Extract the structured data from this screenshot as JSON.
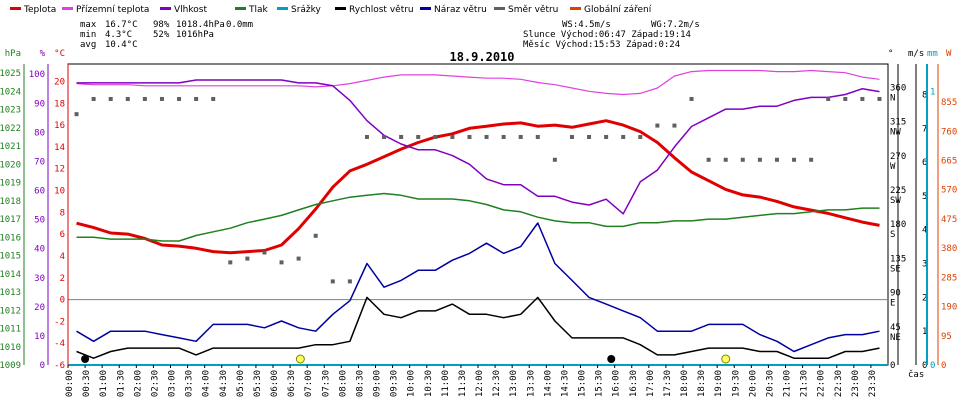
{
  "legend": [
    {
      "label": "Teplota",
      "color": "#e00000"
    },
    {
      "label": "Přízemní teplota",
      "color": "#e040e0"
    },
    {
      "label": "Vlhkost",
      "color": "#8000c0"
    },
    {
      "label": "Tlak",
      "color": "#208020"
    },
    {
      "label": "Srážky",
      "color": "#00a0c0"
    },
    {
      "label": "Rychlost větru",
      "color": "#000000"
    },
    {
      "label": "Náraz větru",
      "color": "#0000a0"
    },
    {
      "label": "Směr větru",
      "color": "#606060"
    },
    {
      "label": "Globální záření",
      "color": "#e04000"
    }
  ],
  "stats": {
    "max_label": "max",
    "max_temp": "16.7°C",
    "max_hum": "98%",
    "max_press": "1018.4hPa",
    "max_rain": "0.0mm",
    "min_label": "min",
    "min_temp": "4.3°C",
    "min_hum": "52%",
    "min_press": "1016hPa",
    "avg_label": "avg",
    "avg_temp": "10.4°C",
    "ws": "WS:4.5m/s",
    "wg": "WG:7.2m/s",
    "sun": "Slunce Východ:06:47   Západ:19:14",
    "moon": "Měsíc  Východ:15:53   Západ:0:24"
  },
  "chart_data": {
    "type": "line",
    "title": "18.9.2010",
    "xlabel": "čas",
    "x": [
      "00:00",
      "00:30",
      "01:00",
      "01:30",
      "02:00",
      "02:30",
      "03:00",
      "03:30",
      "04:00",
      "04:30",
      "05:00",
      "05:30",
      "06:00",
      "06:30",
      "07:00",
      "07:30",
      "08:00",
      "08:30",
      "09:00",
      "09:30",
      "10:00",
      "10:30",
      "11:00",
      "11:30",
      "12:00",
      "12:30",
      "13:00",
      "13:30",
      "14:00",
      "14:30",
      "15:00",
      "15:30",
      "16:00",
      "16:30",
      "17:00",
      "17:30",
      "18:00",
      "18:30",
      "19:00",
      "19:30",
      "20:00",
      "20:30",
      "21:00",
      "21:30",
      "22:00",
      "22:30",
      "23:00",
      "23:30"
    ],
    "axes": {
      "pressure_hpa": {
        "label": "hPa",
        "color": "#208020",
        "ticks": [
          1009,
          1010,
          1011,
          1012,
          1013,
          1014,
          1015,
          1016,
          1017,
          1018,
          1019,
          1020,
          1021,
          1022,
          1023,
          1024,
          1025
        ]
      },
      "humidity_pct": {
        "label": "%",
        "color": "#8000c0",
        "ticks": [
          0,
          10,
          20,
          30,
          40,
          50,
          60,
          70,
          80,
          90,
          100
        ]
      },
      "temperature_c": {
        "label": "°C",
        "color": "#e00000",
        "ticks": [
          -6,
          -4,
          -2,
          0,
          2,
          4,
          6,
          8,
          10,
          12,
          14,
          16,
          18,
          20
        ],
        "ylim": [
          -6,
          21.6
        ]
      },
      "direction": {
        "label": "°",
        "ticks": [
          {
            "v": 0,
            "t": "0"
          },
          {
            "v": 45,
            "t": "45 NE"
          },
          {
            "v": 90,
            "t": "90 E"
          },
          {
            "v": 135,
            "t": "135 SE"
          },
          {
            "v": 180,
            "t": "180 S"
          },
          {
            "v": 225,
            "t": "225 SW"
          },
          {
            "v": 270,
            "t": "270 W"
          },
          {
            "v": 315,
            "t": "315 NW"
          },
          {
            "v": 360,
            "t": "360 N"
          }
        ]
      },
      "wind_ms": {
        "label": "m/s",
        "ticks": [
          0,
          1,
          2,
          3,
          4,
          5,
          6,
          7,
          8
        ]
      },
      "rain_mm": {
        "label": "mm",
        "color": "#00a0c0",
        "ticks": [
          0,
          1
        ]
      },
      "radiation_wm2": {
        "label": "W",
        "color": "#e04000",
        "ticks": [
          0,
          95,
          190,
          285,
          380,
          475,
          570,
          665,
          760,
          855
        ]
      }
    },
    "series": [
      {
        "name": "Teplota",
        "color": "#e00000",
        "values": [
          7.0,
          6.6,
          6.1,
          6.0,
          5.6,
          5.0,
          4.9,
          4.7,
          4.4,
          4.3,
          4.4,
          4.5,
          5.0,
          6.5,
          8.3,
          10.3,
          11.8,
          12.4,
          13.1,
          13.8,
          14.4,
          14.9,
          15.2,
          15.7,
          15.9,
          16.1,
          16.2,
          15.9,
          16.0,
          15.8,
          16.1,
          16.4,
          16.0,
          15.4,
          14.4,
          13.0,
          11.7,
          10.9,
          10.1,
          9.6,
          9.4,
          9.0,
          8.5,
          8.2,
          7.9,
          7.5,
          7.1,
          6.8
        ]
      },
      {
        "name": "Přízemní teplota",
        "color": "#e040e0",
        "values": [
          19.8,
          19.7,
          19.7,
          19.7,
          19.6,
          19.6,
          19.6,
          19.6,
          19.6,
          19.6,
          19.6,
          19.6,
          19.6,
          19.6,
          19.5,
          19.6,
          19.8,
          20.1,
          20.4,
          20.6,
          20.6,
          20.6,
          20.5,
          20.4,
          20.3,
          20.3,
          20.2,
          19.9,
          19.7,
          19.4,
          19.1,
          18.9,
          18.8,
          18.9,
          19.4,
          20.5,
          20.9,
          21.0,
          21.0,
          21.0,
          21.0,
          20.9,
          20.9,
          21.0,
          20.9,
          20.8,
          20.4,
          20.2
        ]
      },
      {
        "name": "Vlhkost",
        "color": "#8000c0",
        "values": [
          97,
          97,
          97,
          97,
          97,
          97,
          97,
          98,
          98,
          98,
          98,
          98,
          98,
          97,
          97,
          96,
          91,
          84,
          79,
          76,
          74,
          74,
          72,
          69,
          64,
          62,
          62,
          58,
          58,
          56,
          55,
          57,
          52,
          63,
          67,
          75,
          82,
          85,
          88,
          88,
          89,
          89,
          91,
          92,
          92,
          93,
          95,
          94
        ]
      },
      {
        "name": "Tlak",
        "color": "#208020",
        "values": [
          1016.0,
          1016.0,
          1015.9,
          1015.9,
          1015.9,
          1015.8,
          1015.8,
          1016.1,
          1016.3,
          1016.5,
          1016.8,
          1017.0,
          1017.2,
          1017.5,
          1017.8,
          1018.0,
          1018.2,
          1018.3,
          1018.4,
          1018.3,
          1018.1,
          1018.1,
          1018.1,
          1018.0,
          1017.8,
          1017.5,
          1017.4,
          1017.1,
          1016.9,
          1016.8,
          1016.8,
          1016.6,
          1016.6,
          1016.8,
          1016.8,
          1016.9,
          1016.9,
          1017.0,
          1017.0,
          1017.1,
          1017.2,
          1017.3,
          1017.3,
          1017.4,
          1017.5,
          1017.5,
          1017.6,
          1017.6
        ]
      },
      {
        "name": "Rychlost větru",
        "color": "#000000",
        "values": [
          0.4,
          0.2,
          0.4,
          0.5,
          0.5,
          0.5,
          0.5,
          0.3,
          0.5,
          0.5,
          0.5,
          0.5,
          0.5,
          0.5,
          0.6,
          0.6,
          0.7,
          2.0,
          1.5,
          1.4,
          1.6,
          1.6,
          1.8,
          1.5,
          1.5,
          1.4,
          1.5,
          2.0,
          1.3,
          0.8,
          0.8,
          0.8,
          0.8,
          0.6,
          0.3,
          0.3,
          0.4,
          0.5,
          0.5,
          0.5,
          0.4,
          0.4,
          0.2,
          0.2,
          0.2,
          0.4,
          0.4,
          0.5
        ]
      },
      {
        "name": "Náraz větru",
        "color": "#0000a0",
        "values": [
          1.0,
          0.7,
          1.0,
          1.0,
          1.0,
          0.9,
          0.8,
          0.7,
          1.2,
          1.2,
          1.2,
          1.1,
          1.3,
          1.1,
          1.0,
          1.5,
          1.9,
          3.0,
          2.3,
          2.5,
          2.8,
          2.8,
          3.1,
          3.3,
          3.6,
          3.3,
          3.5,
          4.2,
          3.0,
          2.5,
          2.0,
          1.8,
          1.6,
          1.4,
          1.0,
          1.0,
          1.0,
          1.2,
          1.2,
          1.2,
          0.9,
          0.7,
          0.4,
          0.6,
          0.8,
          0.9,
          0.9,
          1.0
        ]
      },
      {
        "name": "Směr větru",
        "color": "#606060",
        "values": [
          330,
          350,
          350,
          350,
          350,
          350,
          350,
          350,
          350,
          135,
          140,
          148,
          135,
          140,
          170,
          110,
          110,
          300,
          300,
          300,
          300,
          300,
          300,
          300,
          300,
          300,
          300,
          300,
          270,
          300,
          300,
          300,
          300,
          300,
          315,
          315,
          350,
          270,
          270,
          270,
          270,
          270,
          270,
          270,
          350,
          350,
          350,
          350
        ]
      },
      {
        "name": "Srážky",
        "color": "#00a0c0",
        "values": [
          0,
          0,
          0,
          0,
          0,
          0,
          0,
          0,
          0,
          0,
          0,
          0,
          0,
          0,
          0,
          0,
          0,
          0,
          0,
          0,
          0,
          0,
          0,
          0,
          0,
          0,
          0,
          0,
          0,
          0,
          0,
          0,
          0,
          0,
          0,
          0,
          0,
          0,
          0,
          0,
          0,
          0,
          0,
          0,
          0,
          0,
          0,
          0
        ]
      }
    ]
  }
}
